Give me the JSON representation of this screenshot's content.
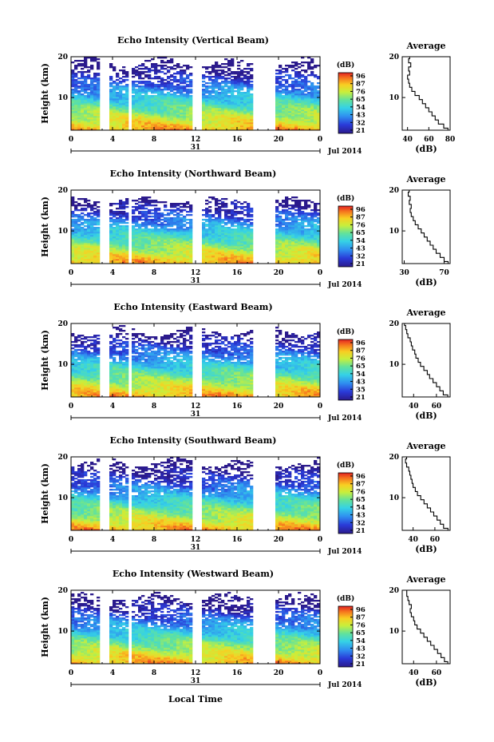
{
  "figure": {
    "xlabel": "Local Time",
    "date_label": "Jul 2014",
    "day_label": "31"
  },
  "chart_data": [
    {
      "type": "heatmap",
      "title": "Echo Intensity (Vertical Beam)",
      "ylabel": "Height (km)",
      "xlim": [
        0,
        24
      ],
      "ylim": [
        2,
        20
      ],
      "x_ticks": [
        "0",
        "4",
        "8",
        "12",
        "16",
        "20",
        "0"
      ],
      "y_ticks": [
        "10",
        "20"
      ],
      "colorbar_label": "(dB)",
      "colorbar_ticks": [
        "96",
        "87",
        "76",
        "65",
        "54",
        "43",
        "32",
        "21"
      ],
      "gaps": [
        [
          2.8,
          3.8
        ],
        [
          5.4,
          6.0
        ],
        [
          11.8,
          12.6
        ],
        [
          17.6,
          19.8
        ]
      ],
      "top_height": [
        17.5,
        20.0
      ],
      "profile": {
        "title": "Average",
        "xlabel": "(dB)",
        "xlim": [
          35,
          80
        ],
        "x_ticks": [
          "40",
          "60",
          "80"
        ],
        "height": [
          2,
          3,
          4,
          5,
          6,
          7,
          8,
          9,
          10,
          11,
          12,
          13,
          14,
          15,
          16,
          17,
          18,
          19,
          20
        ],
        "db": [
          78,
          74,
          69,
          66,
          63,
          60,
          57,
          54,
          51,
          47,
          44,
          42,
          41,
          40,
          42,
          41,
          43,
          41,
          42
        ]
      }
    },
    {
      "type": "heatmap",
      "title": "Echo Intensity (Northward Beam)",
      "ylabel": "Height (km)",
      "xlim": [
        0,
        24
      ],
      "ylim": [
        2,
        20
      ],
      "x_ticks": [
        "0",
        "4",
        "8",
        "12",
        "16",
        "20",
        "0"
      ],
      "y_ticks": [
        "10",
        "20"
      ],
      "colorbar_label": "(dB)",
      "colorbar_ticks": [
        "96",
        "87",
        "76",
        "65",
        "54",
        "43",
        "32",
        "21"
      ],
      "gaps": [
        [
          2.8,
          3.8
        ],
        [
          5.4,
          6.0
        ],
        [
          11.8,
          12.6
        ],
        [
          17.6,
          19.8
        ]
      ],
      "top_height": [
        17.0,
        18.5
      ],
      "profile": {
        "title": "Average",
        "xlabel": "(dB)",
        "xlim": [
          28,
          76
        ],
        "x_ticks": [
          "30",
          "70"
        ],
        "height": [
          2,
          3,
          4,
          5,
          6,
          7,
          8,
          9,
          10,
          11,
          12,
          13,
          14,
          15,
          16,
          17,
          18,
          19,
          20
        ],
        "db": [
          74,
          70,
          66,
          62,
          59,
          56,
          53,
          50,
          47,
          44,
          41,
          39,
          37,
          36,
          37,
          35,
          36,
          34,
          35
        ]
      }
    },
    {
      "type": "heatmap",
      "title": "Echo Intensity (Eastward Beam)",
      "ylabel": "Height (km)",
      "xlim": [
        0,
        24
      ],
      "ylim": [
        2,
        20
      ],
      "x_ticks": [
        "0",
        "4",
        "8",
        "12",
        "16",
        "20",
        "0"
      ],
      "y_ticks": [
        "10",
        "20"
      ],
      "colorbar_label": "(dB)",
      "colorbar_ticks": [
        "96",
        "87",
        "76",
        "65",
        "54",
        "43",
        "35",
        "21"
      ],
      "gaps": [
        [
          2.8,
          3.8
        ],
        [
          5.4,
          6.0
        ],
        [
          11.8,
          12.6
        ],
        [
          17.6,
          19.8
        ]
      ],
      "top_height": [
        17.0,
        19.5
      ],
      "profile": {
        "title": "Average",
        "xlabel": "(dB)",
        "xlim": [
          30,
          72
        ],
        "x_ticks": [
          "40",
          "60"
        ],
        "height": [
          2,
          3,
          4,
          5,
          6,
          7,
          8,
          9,
          10,
          11,
          12,
          13,
          14,
          15,
          16,
          17,
          18,
          19,
          20
        ],
        "db": [
          70,
          66,
          63,
          60,
          57,
          54,
          52,
          49,
          46,
          44,
          42,
          41,
          39,
          38,
          37,
          35,
          34,
          33,
          32
        ]
      }
    },
    {
      "type": "heatmap",
      "title": "Echo Intensity (Southward Beam)",
      "ylabel": "Height (km)",
      "xlim": [
        0,
        24
      ],
      "ylim": [
        2,
        20
      ],
      "x_ticks": [
        "0",
        "4",
        "8",
        "12",
        "16",
        "20",
        "0"
      ],
      "y_ticks": [
        "10",
        "20"
      ],
      "colorbar_label": "(dB)",
      "colorbar_ticks": [
        "96",
        "87",
        "76",
        "65",
        "54",
        "43",
        "32",
        "21"
      ],
      "gaps": [
        [
          2.8,
          3.8
        ],
        [
          5.4,
          6.0
        ],
        [
          11.8,
          12.6
        ],
        [
          17.6,
          19.8
        ]
      ],
      "top_height": [
        17.5,
        20.0
      ],
      "profile": {
        "title": "Average",
        "xlabel": "(dB)",
        "xlim": [
          30,
          74
        ],
        "x_ticks": [
          "40",
          "60"
        ],
        "height": [
          2,
          3,
          4,
          5,
          6,
          7,
          8,
          9,
          10,
          11,
          12,
          13,
          14,
          15,
          16,
          17,
          18,
          19,
          20
        ],
        "db": [
          72,
          68,
          65,
          62,
          59,
          56,
          53,
          50,
          47,
          44,
          42,
          40,
          39,
          38,
          37,
          36,
          34,
          33,
          34
        ]
      }
    },
    {
      "type": "heatmap",
      "title": "Echo Intensity (Westward Beam)",
      "ylabel": "Height (km)",
      "xlim": [
        0,
        24
      ],
      "ylim": [
        2,
        20
      ],
      "x_ticks": [
        "0",
        "4",
        "8",
        "12",
        "16",
        "20",
        "0"
      ],
      "y_ticks": [
        "10",
        "20"
      ],
      "colorbar_label": "(dB)",
      "colorbar_ticks": [
        "96",
        "87",
        "76",
        "65",
        "54",
        "43",
        "32",
        "21"
      ],
      "gaps": [
        [
          2.8,
          3.8
        ],
        [
          5.4,
          6.0
        ],
        [
          11.8,
          12.6
        ],
        [
          17.6,
          19.8
        ]
      ],
      "top_height": [
        17.5,
        19.5
      ],
      "profile": {
        "title": "Average",
        "xlabel": "(dB)",
        "xlim": [
          30,
          72
        ],
        "x_ticks": [
          "40",
          "60"
        ],
        "height": [
          2,
          3,
          4,
          5,
          6,
          7,
          8,
          9,
          10,
          11,
          12,
          13,
          14,
          15,
          16,
          17,
          18,
          19,
          20
        ],
        "db": [
          70,
          67,
          64,
          61,
          58,
          55,
          52,
          49,
          46,
          43,
          41,
          40,
          38,
          37,
          38,
          36,
          35,
          34,
          34
        ]
      }
    }
  ]
}
